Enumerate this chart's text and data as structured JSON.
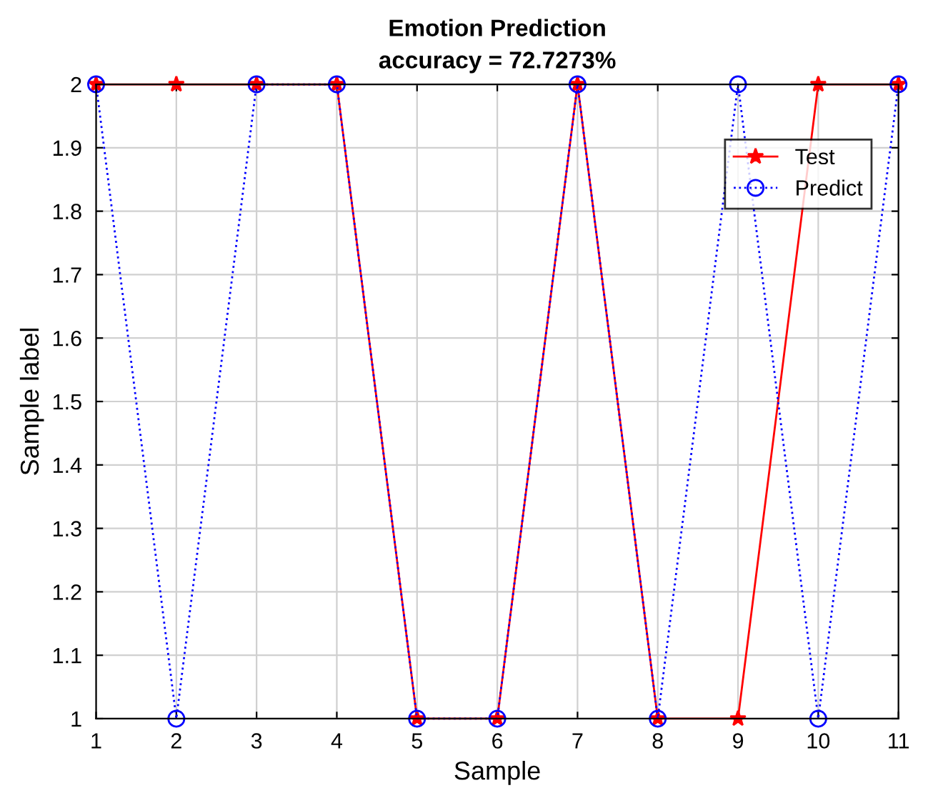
{
  "chart_data": {
    "type": "line",
    "title": "Emotion Prediction",
    "subtitle": "accuracy = 72.7273%",
    "xlabel": "Sample",
    "ylabel": "Sample label",
    "x": [
      1,
      2,
      3,
      4,
      5,
      6,
      7,
      8,
      9,
      10,
      11
    ],
    "series": [
      {
        "name": "Test",
        "color": "#ff0000",
        "marker": "star",
        "line_style": "solid",
        "values": [
          2,
          2,
          2,
          2,
          1,
          1,
          2,
          1,
          1,
          2,
          2
        ]
      },
      {
        "name": "Predict",
        "color": "#0000ff",
        "marker": "circle",
        "line_style": "dotted",
        "values": [
          2,
          1,
          2,
          2,
          1,
          1,
          2,
          1,
          2,
          1,
          2
        ]
      }
    ],
    "xlim": [
      1,
      11
    ],
    "xticks": [
      1,
      2,
      3,
      4,
      5,
      6,
      7,
      8,
      9,
      10,
      11
    ],
    "ylim": [
      1,
      2
    ],
    "yticks": [
      1,
      1.1,
      1.2,
      1.3,
      1.4,
      1.5,
      1.6,
      1.7,
      1.8,
      1.9,
      2
    ],
    "grid": true,
    "legend": "top right"
  }
}
